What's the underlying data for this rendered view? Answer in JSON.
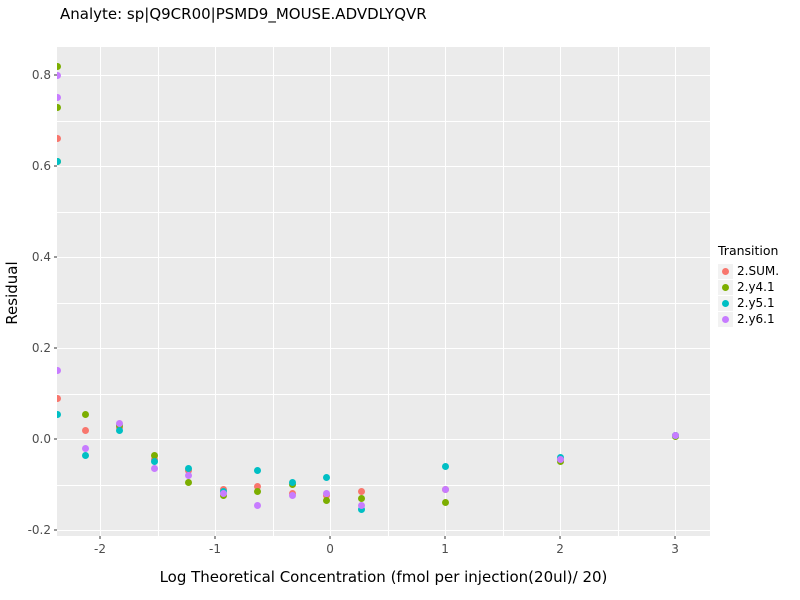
{
  "title": "Analyte: sp|Q9CR00|PSMD9_MOUSE.ADVDLYQVR",
  "chart_data": {
    "type": "scatter",
    "title": "Analyte: sp|Q9CR00|PSMD9_MOUSE.ADVDLYQVR",
    "xlabel": "Log Theoretical Concentration (fmol per injection(20ul)/ 20)",
    "ylabel": "Residual",
    "xlim": [
      -2.374,
      3.304
    ],
    "ylim": [
      -0.213,
      0.862
    ],
    "x_ticks": [
      -2,
      -1,
      0,
      1,
      2,
      3
    ],
    "x_tick_labels": [
      "-2",
      "-1",
      "0",
      "1",
      "2",
      "3"
    ],
    "y_ticks": [
      -0.2,
      0.0,
      0.2,
      0.4,
      0.6,
      0.8
    ],
    "y_tick_labels": [
      "-0.2",
      "0.0",
      "0.2",
      "0.4",
      "0.6",
      "0.8"
    ],
    "grid": true,
    "panel_background": "#EBEBEB",
    "legend_position": "right",
    "legend_title": "Transition",
    "series": [
      {
        "name": "2.SUM.",
        "color": "#F8766D",
        "points": [
          [
            -2.37,
            0.66
          ],
          [
            -2.37,
            0.09
          ],
          [
            -2.13,
            0.02
          ],
          [
            -1.83,
            0.025
          ],
          [
            -1.53,
            -0.045
          ],
          [
            -1.23,
            -0.07
          ],
          [
            -0.93,
            -0.11
          ],
          [
            -0.63,
            -0.105
          ],
          [
            -0.33,
            -0.12
          ],
          [
            -0.03,
            -0.125
          ],
          [
            0.27,
            -0.115
          ],
          [
            1.0,
            -0.11
          ],
          [
            2.0,
            -0.045
          ],
          [
            3.0,
            0.007
          ]
        ]
      },
      {
        "name": "2.y4.1",
        "color": "#7CAE00",
        "points": [
          [
            -2.37,
            0.82
          ],
          [
            -2.37,
            0.73
          ],
          [
            -2.37,
            0.61
          ],
          [
            -2.13,
            0.055
          ],
          [
            -1.83,
            0.03
          ],
          [
            -1.53,
            -0.035
          ],
          [
            -1.23,
            -0.095
          ],
          [
            -0.93,
            -0.125
          ],
          [
            -0.63,
            -0.115
          ],
          [
            -0.33,
            -0.1
          ],
          [
            -0.03,
            -0.135
          ],
          [
            0.27,
            -0.13
          ],
          [
            1.0,
            -0.14
          ],
          [
            2.0,
            -0.05
          ],
          [
            3.0,
            0.005
          ]
        ]
      },
      {
        "name": "2.y5.1",
        "color": "#00BFC4",
        "points": [
          [
            -2.37,
            0.61
          ],
          [
            -2.37,
            0.055
          ],
          [
            -2.13,
            -0.035
          ],
          [
            -1.83,
            0.02
          ],
          [
            -1.53,
            -0.05
          ],
          [
            -1.23,
            -0.065
          ],
          [
            -0.93,
            -0.115
          ],
          [
            -0.63,
            -0.07
          ],
          [
            -0.33,
            -0.095
          ],
          [
            -0.03,
            -0.085
          ],
          [
            0.27,
            -0.155
          ],
          [
            1.0,
            -0.06
          ],
          [
            2.0,
            -0.04
          ],
          [
            3.0,
            0.007
          ]
        ]
      },
      {
        "name": "2.y6.1",
        "color": "#C77CFF",
        "points": [
          [
            -2.37,
            0.8
          ],
          [
            -2.37,
            0.75
          ],
          [
            -2.37,
            0.15
          ],
          [
            -2.13,
            -0.02
          ],
          [
            -1.83,
            0.035
          ],
          [
            -1.53,
            -0.065
          ],
          [
            -1.23,
            -0.08
          ],
          [
            -0.93,
            -0.12
          ],
          [
            -0.63,
            -0.145
          ],
          [
            -0.33,
            -0.125
          ],
          [
            -0.03,
            -0.12
          ],
          [
            0.27,
            -0.145
          ],
          [
            1.0,
            -0.11
          ],
          [
            2.0,
            -0.045
          ],
          [
            3.0,
            0.007
          ]
        ]
      }
    ]
  }
}
